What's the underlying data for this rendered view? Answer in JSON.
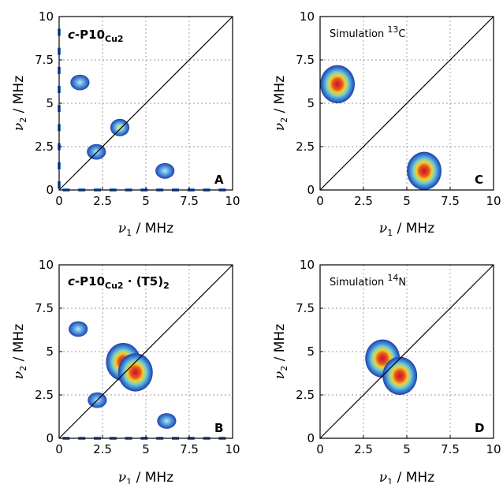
{
  "figure": {
    "panels": [
      {
        "letter": "A",
        "title_main": "-P10",
        "title_sub": "Cu2",
        "title_suffix": "",
        "title_italic_prefix": "c"
      },
      {
        "letter": "B",
        "title_main": "-P10",
        "title_sub": "Cu2",
        "title_suffix": " · (T5)",
        "title_suffix_sub": "2",
        "title_italic_prefix": "c"
      },
      {
        "letter": "C",
        "sim_label": "Simulation ",
        "sim_sup": "13",
        "sim_tail": "C"
      },
      {
        "letter": "D",
        "sim_label": "Simulation ",
        "sim_sup": "14",
        "sim_tail": "N"
      }
    ],
    "xlabel_sym": "ν",
    "xlabel_sub": "1",
    "xlabel_unit": " / MHz",
    "ylabel_sym": "ν",
    "ylabel_sub": "2",
    "ylabel_unit": " / MHz",
    "ticks_left_panels": [
      "0",
      "2.5",
      "5",
      "7.5",
      "10"
    ],
    "ticks_right_panels": [
      "0",
      "2.5",
      "5",
      "7.5",
      "10"
    ]
  },
  "chart_data": [
    {
      "type": "heatmap",
      "panel": "A",
      "title": "c-P10Cu2",
      "xlabel": "ν1 / MHz",
      "ylabel": "ν2 / MHz",
      "xlim": [
        0,
        10
      ],
      "ylim": [
        0,
        10
      ],
      "xticks": [
        0,
        2.5,
        5,
        7.5,
        10
      ],
      "yticks": [
        0,
        2.5,
        5,
        7.5,
        10
      ],
      "grid": true,
      "diagonal": true,
      "peaks": [
        {
          "x": 1.2,
          "y": 6.2,
          "intensity": 0.35
        },
        {
          "x": 2.15,
          "y": 2.2,
          "intensity": 0.35
        },
        {
          "x": 3.5,
          "y": 3.6,
          "intensity": 0.75
        },
        {
          "x": 6.1,
          "y": 1.1,
          "intensity": 0.35
        }
      ]
    },
    {
      "type": "heatmap",
      "panel": "B",
      "title": "c-P10Cu2 · (T5)2",
      "xlabel": "ν1 / MHz",
      "ylabel": "ν2 / MHz",
      "xlim": [
        0,
        10
      ],
      "ylim": [
        0,
        10
      ],
      "xticks": [
        0,
        2.5,
        5,
        7.5,
        10
      ],
      "yticks": [
        0,
        2.5,
        5,
        7.5,
        10
      ],
      "grid": true,
      "diagonal": true,
      "peaks": [
        {
          "x": 1.1,
          "y": 6.3,
          "intensity": 0.35
        },
        {
          "x": 2.2,
          "y": 2.2,
          "intensity": 0.35
        },
        {
          "x": 3.7,
          "y": 4.4,
          "intensity": 1.0
        },
        {
          "x": 4.4,
          "y": 3.8,
          "intensity": 1.0
        },
        {
          "x": 6.2,
          "y": 1.0,
          "intensity": 0.35
        }
      ]
    },
    {
      "type": "heatmap",
      "panel": "C",
      "title": "Simulation 13C",
      "xlabel": "ν1 / MHz",
      "ylabel": "ν2 / MHz",
      "xlim": [
        0,
        10
      ],
      "ylim": [
        0,
        10
      ],
      "xticks": [
        0,
        2.5,
        5,
        7.5,
        10
      ],
      "yticks": [
        0,
        2.5,
        5,
        7.5,
        10
      ],
      "grid": true,
      "diagonal": true,
      "peaks": [
        {
          "x": 1.0,
          "y": 6.1,
          "intensity": 1.0
        },
        {
          "x": 6.0,
          "y": 1.1,
          "intensity": 1.0
        }
      ]
    },
    {
      "type": "heatmap",
      "panel": "D",
      "title": "Simulation 14N",
      "xlabel": "ν1 / MHz",
      "ylabel": "ν2 / MHz",
      "xlim": [
        0,
        10
      ],
      "ylim": [
        0,
        10
      ],
      "xticks": [
        0,
        2.5,
        5,
        7.5,
        10
      ],
      "yticks": [
        0,
        2.5,
        5,
        7.5,
        10
      ],
      "grid": true,
      "diagonal": true,
      "peaks": [
        {
          "x": 3.6,
          "y": 4.6,
          "intensity": 1.0
        },
        {
          "x": 4.6,
          "y": 3.6,
          "intensity": 1.0
        }
      ]
    }
  ]
}
